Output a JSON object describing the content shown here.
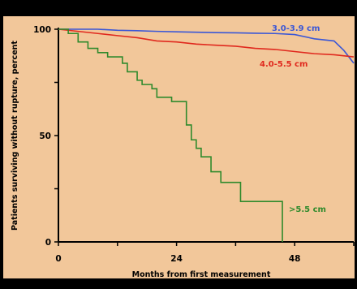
{
  "chart_data": {
    "type": "line",
    "xlabel": "Months from first measurement",
    "ylabel": "Patients surviving without rupture, percent",
    "xlim": [
      0,
      60
    ],
    "ylim": [
      0,
      100
    ],
    "xticks": [
      "0",
      "24",
      "48"
    ],
    "xtick_values": [
      0,
      24,
      48
    ],
    "yticks": [
      "0",
      "50",
      "100"
    ],
    "ytick_values": [
      0,
      50,
      100
    ],
    "background_color": "#f2c79a",
    "series": [
      {
        "name": "3.0-3.9 cm",
        "color": "#3b57d6",
        "x": [
          0,
          4,
          8,
          12,
          16,
          20,
          24,
          28,
          32,
          36,
          40,
          44,
          48,
          52,
          56,
          58,
          60
        ],
        "y": [
          100,
          100,
          100,
          99.5,
          99.3,
          99,
          98.8,
          98.6,
          98.4,
          98.3,
          98.1,
          98,
          97.5,
          95.5,
          94.5,
          90,
          84
        ]
      },
      {
        "name": "4.0-5.5 cm",
        "color": "#e0291e",
        "x": [
          0,
          4,
          8,
          12,
          16,
          20,
          24,
          28,
          32,
          36,
          40,
          44,
          48,
          52,
          56,
          60
        ],
        "y": [
          100,
          99,
          98,
          97,
          96,
          94.5,
          94,
          93,
          92.5,
          92,
          91,
          90.5,
          89.5,
          88.5,
          88,
          87
        ]
      },
      {
        "name": ">5.5 cm",
        "color": "#2f8a2c",
        "step": true,
        "x": [
          0,
          2,
          4,
          6,
          8,
          10,
          13,
          14,
          16,
          17,
          19,
          20,
          23,
          26,
          27,
          28,
          29,
          31,
          33,
          34,
          37,
          40,
          45.5
        ],
        "y": [
          100,
          98,
          94,
          91,
          89,
          87,
          84,
          80,
          76,
          74,
          72,
          68,
          66,
          55,
          48,
          44,
          40,
          33,
          28,
          28,
          19,
          19,
          0
        ]
      }
    ]
  }
}
